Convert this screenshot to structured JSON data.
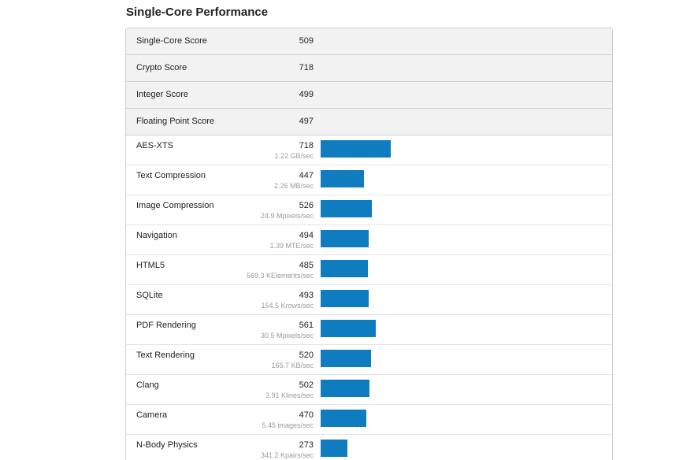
{
  "section": {
    "title": "Single-Core Performance"
  },
  "summary": [
    {
      "name": "Single-Core Score",
      "score": "509"
    },
    {
      "name": "Crypto Score",
      "score": "718"
    },
    {
      "name": "Integer Score",
      "score": "499"
    },
    {
      "name": "Floating Point Score",
      "score": "497"
    }
  ],
  "benchmarks": [
    {
      "name": "AES-XTS",
      "score": 718,
      "desc": "1.22 GB/sec"
    },
    {
      "name": "Text Compression",
      "score": 447,
      "desc": "2.26 MB/sec"
    },
    {
      "name": "Image Compression",
      "score": 526,
      "desc": "24.9 Mpixels/sec"
    },
    {
      "name": "Navigation",
      "score": 494,
      "desc": "1.39 MTE/sec"
    },
    {
      "name": "HTML5",
      "score": 485,
      "desc": "569.3 KElements/sec"
    },
    {
      "name": "SQLite",
      "score": 493,
      "desc": "154.5 Krows/sec"
    },
    {
      "name": "PDF Rendering",
      "score": 561,
      "desc": "30.5 Mpixels/sec"
    },
    {
      "name": "Text Rendering",
      "score": 520,
      "desc": "165.7 KB/sec"
    },
    {
      "name": "Clang",
      "score": 502,
      "desc": "3.91 Klines/sec"
    },
    {
      "name": "Camera",
      "score": 470,
      "desc": "5.45 images/sec"
    },
    {
      "name": "N-Body Physics",
      "score": 273,
      "desc": "341.2 Kpairs/sec"
    }
  ],
  "colors": {
    "bar": "#0f7cc0",
    "summary_bg": "#f2f2f2"
  }
}
